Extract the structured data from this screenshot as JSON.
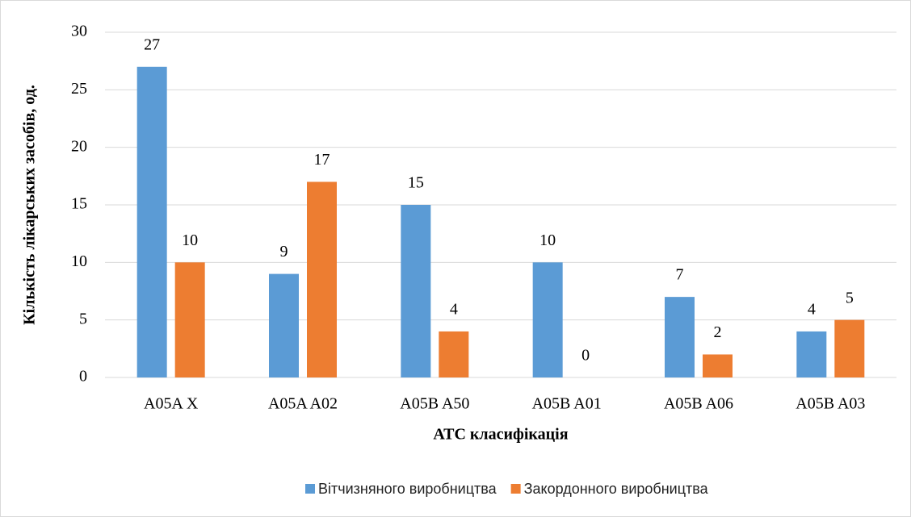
{
  "chart_data": {
    "type": "bar",
    "ylabel": "Кількість лікарських засобів, од.",
    "xlabel": "АТС класифікація",
    "categories": [
      "A05A X",
      "A05A A02",
      "A05B A50",
      "A05B A01",
      "A05B A06",
      "A05B A03"
    ],
    "series": [
      {
        "name": "Вітчизняного виробництва",
        "color": "#5b9bd5",
        "values": [
          27,
          9,
          15,
          10,
          7,
          4
        ]
      },
      {
        "name": "Закордонного виробництва",
        "color": "#ed7d31",
        "values": [
          10,
          17,
          4,
          0,
          2,
          5
        ]
      }
    ],
    "ylim": [
      0,
      30
    ],
    "yticks": [
      0,
      5,
      10,
      15,
      20,
      25,
      30
    ],
    "grid": true,
    "legend": "bottom"
  }
}
